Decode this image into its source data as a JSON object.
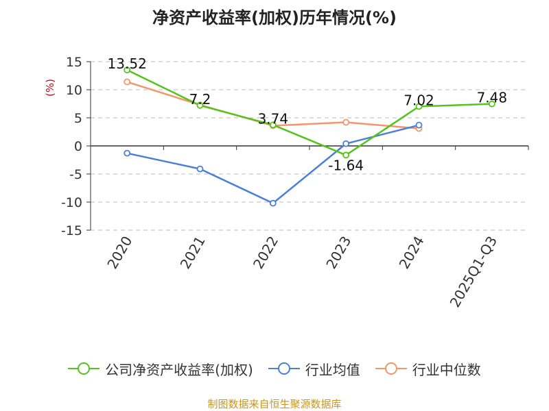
{
  "chart_data": {
    "type": "line",
    "title": "净资产收益率(加权)历年情况(%)",
    "ylabel": "(%)",
    "xlabel": "",
    "categories": [
      "2020",
      "2021",
      "2022",
      "2023",
      "2024",
      "2025Q1-Q3"
    ],
    "ylim": [
      -15,
      15
    ],
    "yticks": [
      15,
      10,
      5,
      0,
      -5,
      -10,
      -15
    ],
    "grid": true,
    "legend_position": "bottom",
    "series": [
      {
        "name": "公司净资产收益率(加权)",
        "color": "#52c41a",
        "values": [
          13.52,
          7.2,
          3.74,
          -1.64,
          7.02,
          7.48
        ],
        "labels": [
          "13.52",
          "7.2",
          "3.74",
          "-1.64",
          "7.02",
          "7.48"
        ]
      },
      {
        "name": "行业均值",
        "color": "#4a7fd9",
        "values": [
          -1.3,
          -4.1,
          -10.2,
          0.4,
          3.7,
          null
        ]
      },
      {
        "name": "行业中位数",
        "color": "#f5956a",
        "values": [
          11.4,
          7.3,
          3.6,
          4.2,
          3.1,
          null
        ]
      }
    ]
  },
  "source": "制图数据来自恒生聚源数据库"
}
